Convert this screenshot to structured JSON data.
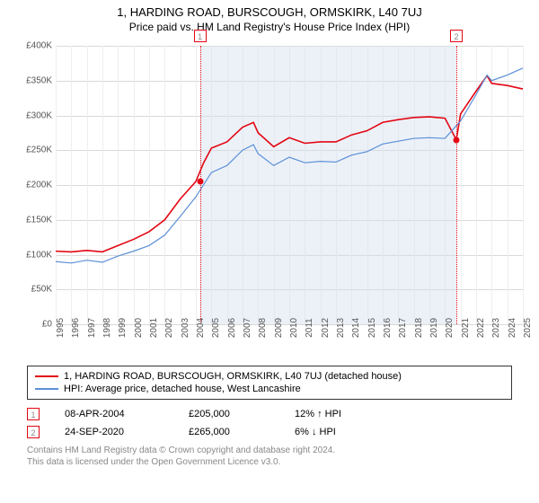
{
  "title": "1, HARDING ROAD, BURSCOUGH, ORMSKIRK, L40 7UJ",
  "subtitle": "Price paid vs. HM Land Registry's House Price Index (HPI)",
  "chart": {
    "type": "line",
    "background_color": "#ffffff",
    "grid_color_major": "#d9d9d9",
    "grid_color_minor": "#eeeeee",
    "axis_font_color": "#555555",
    "axis_font_size": 10,
    "ylim": [
      0,
      400000
    ],
    "ytick_step": 50000,
    "ytick_prefix": "£",
    "ytick_labels": [
      "£0",
      "£50K",
      "£100K",
      "£150K",
      "£200K",
      "£250K",
      "£300K",
      "£350K",
      "£400K"
    ],
    "xlim": [
      1995,
      2025
    ],
    "xtick_step": 1,
    "xtick_labels": [
      "1995",
      "1996",
      "1997",
      "1998",
      "1999",
      "2000",
      "2001",
      "2002",
      "2003",
      "2004",
      "2005",
      "2006",
      "2007",
      "2008",
      "2009",
      "2010",
      "2011",
      "2012",
      "2013",
      "2014",
      "2015",
      "2016",
      "2017",
      "2018",
      "2019",
      "2020",
      "2021",
      "2022",
      "2023",
      "2024",
      "2025"
    ],
    "shaded_region": {
      "x_start": 2004.27,
      "x_end": 2020.73,
      "color": "#d4dff0",
      "opacity": 0.45
    },
    "series": [
      {
        "name": "property",
        "label": "1, HARDING ROAD, BURSCOUGH, ORMSKIRK, L40 7UJ (detached house)",
        "color": "#e30613",
        "line_width": 1.6,
        "data": [
          [
            1995,
            105000
          ],
          [
            1996,
            104000
          ],
          [
            1997,
            106000
          ],
          [
            1998,
            104000
          ],
          [
            1999,
            113000
          ],
          [
            2000,
            122000
          ],
          [
            2001,
            133000
          ],
          [
            2002,
            150000
          ],
          [
            2003,
            180000
          ],
          [
            2004,
            205000
          ],
          [
            2004.5,
            232000
          ],
          [
            2005,
            253000
          ],
          [
            2006,
            262000
          ],
          [
            2007,
            283000
          ],
          [
            2007.7,
            290000
          ],
          [
            2008,
            275000
          ],
          [
            2009,
            255000
          ],
          [
            2010,
            268000
          ],
          [
            2011,
            260000
          ],
          [
            2012,
            262000
          ],
          [
            2013,
            262000
          ],
          [
            2014,
            272000
          ],
          [
            2015,
            278000
          ],
          [
            2016,
            290000
          ],
          [
            2017,
            294000
          ],
          [
            2018,
            297000
          ],
          [
            2019,
            298000
          ],
          [
            2020,
            296000
          ],
          [
            2020.73,
            265000
          ],
          [
            2021,
            302000
          ],
          [
            2022,
            335000
          ],
          [
            2022.7,
            357000
          ],
          [
            2023,
            346000
          ],
          [
            2024,
            343000
          ],
          [
            2025,
            338000
          ]
        ]
      },
      {
        "name": "hpi",
        "label": "HPI: Average price, detached house, West Lancashire",
        "color": "#5b8fd6",
        "line_width": 1.2,
        "data": [
          [
            1995,
            90000
          ],
          [
            1996,
            88000
          ],
          [
            1997,
            92000
          ],
          [
            1998,
            89000
          ],
          [
            1999,
            98000
          ],
          [
            2000,
            105000
          ],
          [
            2001,
            113000
          ],
          [
            2002,
            128000
          ],
          [
            2003,
            155000
          ],
          [
            2004,
            183000
          ],
          [
            2005,
            218000
          ],
          [
            2006,
            228000
          ],
          [
            2007,
            250000
          ],
          [
            2007.7,
            258000
          ],
          [
            2008,
            245000
          ],
          [
            2009,
            228000
          ],
          [
            2010,
            240000
          ],
          [
            2011,
            232000
          ],
          [
            2012,
            234000
          ],
          [
            2013,
            233000
          ],
          [
            2014,
            243000
          ],
          [
            2015,
            248000
          ],
          [
            2016,
            259000
          ],
          [
            2017,
            263000
          ],
          [
            2018,
            267000
          ],
          [
            2019,
            268000
          ],
          [
            2020,
            267000
          ],
          [
            2021,
            292000
          ],
          [
            2022,
            330000
          ],
          [
            2022.7,
            358000
          ],
          [
            2023,
            350000
          ],
          [
            2024,
            358000
          ],
          [
            2025,
            368000
          ]
        ]
      }
    ],
    "markers": [
      {
        "id": "1",
        "x": 2004.27,
        "y": 205000,
        "line_color": "#e30613",
        "dot_color": "#e30613",
        "badge_border": "#e30613",
        "badge_text_color": "#888888"
      },
      {
        "id": "2",
        "x": 2020.73,
        "y": 265000,
        "line_color": "#e30613",
        "dot_color": "#e30613",
        "badge_border": "#e30613",
        "badge_text_color": "#888888"
      }
    ]
  },
  "legend": {
    "border_color": "#333333",
    "rows": [
      {
        "color": "#e30613",
        "text": "1, HARDING ROAD, BURSCOUGH, ORMSKIRK, L40 7UJ (detached house)"
      },
      {
        "color": "#5b8fd6",
        "text": "HPI: Average price, detached house, West Lancashire"
      }
    ]
  },
  "transactions": [
    {
      "badge": "1",
      "badge_color": "#e30613",
      "date": "08-APR-2004",
      "price": "£205,000",
      "delta": "12% ↑ HPI"
    },
    {
      "badge": "2",
      "badge_color": "#e30613",
      "date": "24-SEP-2020",
      "price": "£265,000",
      "delta": "6% ↓ HPI"
    }
  ],
  "footer": {
    "line1": "Contains HM Land Registry data © Crown copyright and database right 2024.",
    "line2": "This data is licensed under the Open Government Licence v3.0."
  }
}
